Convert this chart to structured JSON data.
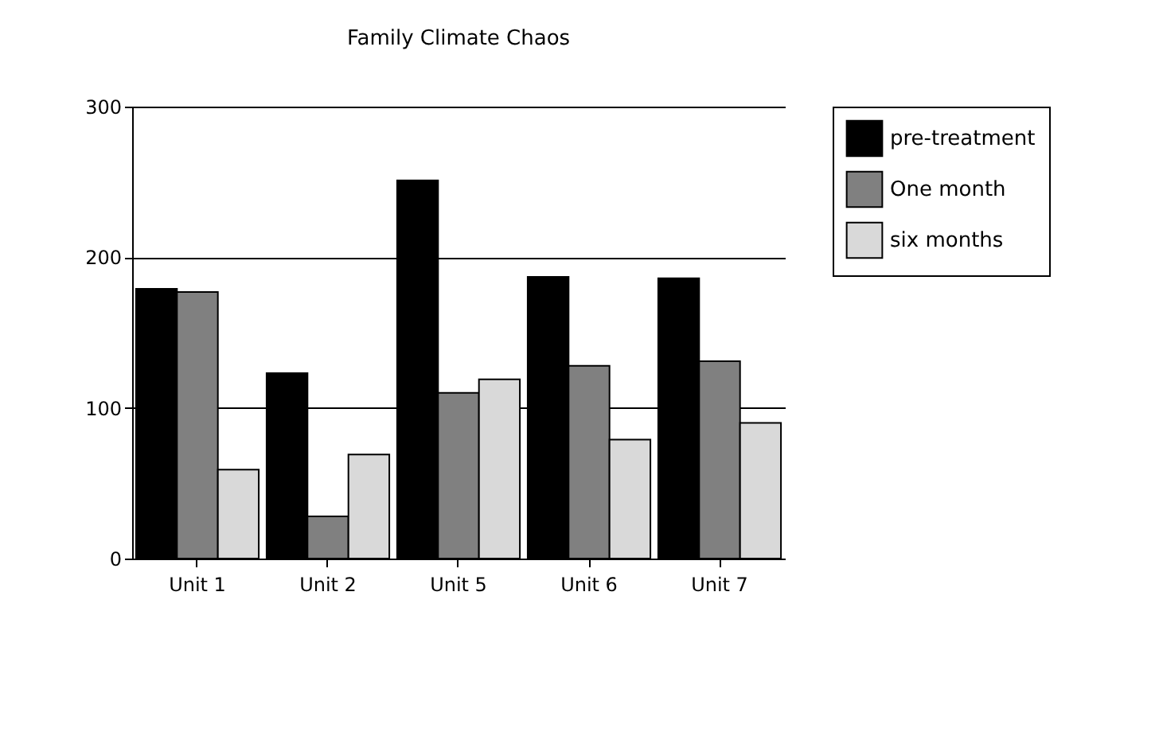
{
  "chart_data": {
    "type": "bar",
    "title": "Family Climate Chaos",
    "categories": [
      "Unit 1",
      "Unit 2",
      "Unit 5",
      "Unit 6",
      "Unit 7"
    ],
    "series": [
      {
        "name": "pre-treatment",
        "color": "#000000",
        "values": [
          179,
          123,
          251,
          187,
          186
        ]
      },
      {
        "name": "One month",
        "color": "#808080",
        "values": [
          177,
          28,
          110,
          128,
          131
        ]
      },
      {
        "name": "six months",
        "color": "#d9d9d9",
        "values": [
          59,
          69,
          119,
          79,
          90
        ]
      }
    ],
    "ylim": [
      0,
      300
    ],
    "yticks": [
      0,
      100,
      200,
      300
    ],
    "grid": "y",
    "legend": "top right"
  }
}
